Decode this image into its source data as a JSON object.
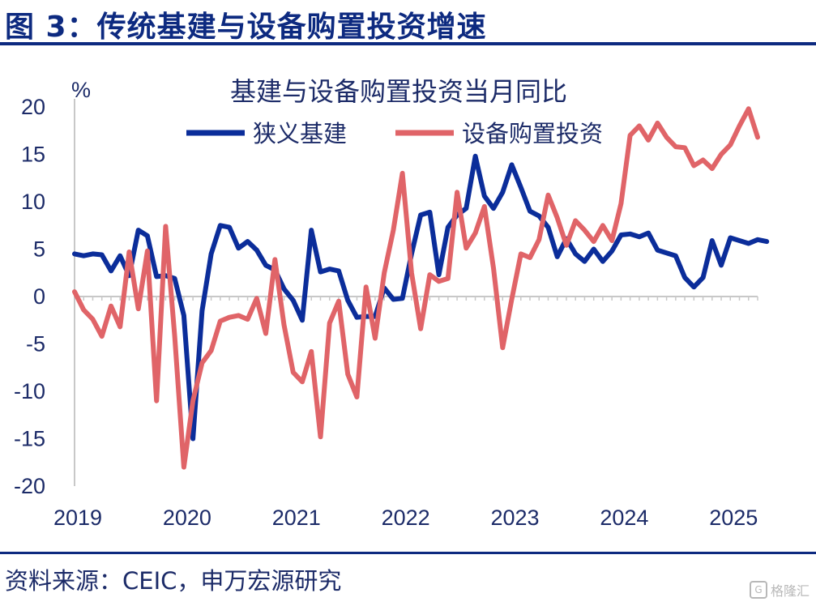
{
  "figure": {
    "title": "图 3：传统基建与设备购置投资增速",
    "source": "资料来源：CEIC，申万宏源研究",
    "watermark": "格隆汇"
  },
  "colors": {
    "brand": "#0d2a80",
    "infra": "#0b2d9a",
    "equipment": "#e06468",
    "axis": "#c8c8c8",
    "text": "#1c2b68"
  },
  "chart_data": {
    "type": "line",
    "title": "基建与设备购置投资当月同比",
    "ylabel": "%",
    "xlabel": "",
    "ylim": [
      -20,
      20
    ],
    "yticks": [
      20,
      15,
      10,
      5,
      0,
      -5,
      -10,
      -15,
      -20
    ],
    "xlim": [
      0,
      75
    ],
    "xticks": [
      {
        "label": "2019",
        "pos": 0
      },
      {
        "label": "2020",
        "pos": 12
      },
      {
        "label": "2021",
        "pos": 24
      },
      {
        "label": "2022",
        "pos": 36
      },
      {
        "label": "2023",
        "pos": 48
      },
      {
        "label": "2024",
        "pos": 60
      },
      {
        "label": "2025",
        "pos": 72
      }
    ],
    "legend_position": "top-center",
    "series": [
      {
        "name": "狭义基建",
        "key": "infra",
        "values": [
          4.5,
          4.3,
          4.5,
          4.4,
          2.7,
          4.3,
          2.2,
          7.0,
          6.4,
          2.1,
          2.2,
          1.9,
          -2.0,
          -15.0,
          -1.5,
          4.5,
          7.5,
          7.3,
          5.1,
          5.8,
          4.9,
          3.3,
          2.8,
          0.8,
          -0.4,
          -2.5,
          7.0,
          2.6,
          2.9,
          2.7,
          -0.4,
          -2.2,
          -2.1,
          -2.1,
          0.9,
          -0.3,
          -0.2,
          4.5,
          8.6,
          8.9,
          2.3,
          7.3,
          8.6,
          9.3,
          14.8,
          10.6,
          9.3,
          11.0,
          13.9,
          11.5,
          9.0,
          8.5,
          7.3,
          4.2,
          6.1,
          4.5,
          3.7,
          5.0,
          3.7,
          4.8,
          6.5,
          6.6,
          6.3,
          6.7,
          4.9,
          4.6,
          4.3,
          2.0,
          1.0,
          2.0,
          5.9,
          3.3,
          6.2,
          5.9,
          5.6,
          6.0,
          5.8
        ]
      },
      {
        "name": "设备购置投资",
        "key": "equipment",
        "values": [
          0.5,
          -1.4,
          -2.4,
          -4.2,
          -1.0,
          -3.2,
          4.7,
          -1.3,
          4.8,
          -11.0,
          7.4,
          -4.2,
          -18.0,
          -11.0,
          -7.0,
          -5.7,
          -2.6,
          -2.2,
          -2.0,
          -2.4,
          -0.2,
          -3.9,
          3.9,
          -3.0,
          -8.0,
          -9.0,
          -5.8,
          -14.8,
          -2.8,
          -0.5,
          -8.2,
          -10.6,
          1.0,
          -4.4,
          2.5,
          7.0,
          13.0,
          2.5,
          -3.4,
          2.3,
          1.6,
          1.9,
          11.0,
          5.1,
          6.7,
          9.5,
          3.0,
          -5.4,
          -0.3,
          4.5,
          4.1,
          6.0,
          10.7,
          8.3,
          5.4,
          8.0,
          7.0,
          5.8,
          7.5,
          5.9,
          9.8,
          17.0,
          18.0,
          16.5,
          18.3,
          16.8,
          15.8,
          15.7,
          13.8,
          14.4,
          13.5,
          15.0,
          16.0,
          18.0,
          19.8,
          16.8
        ]
      }
    ]
  }
}
